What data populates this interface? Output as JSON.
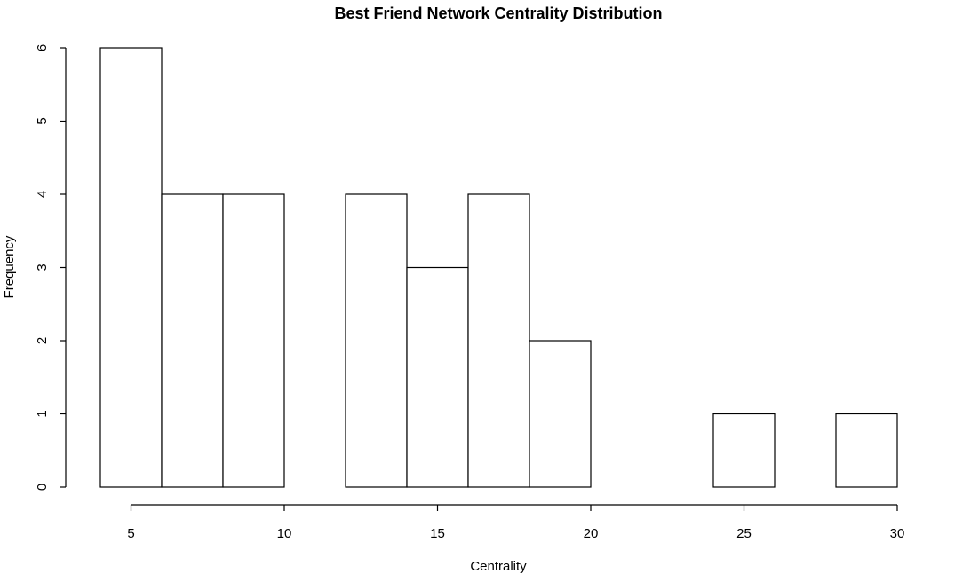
{
  "chart_data": {
    "type": "bar",
    "subtype": "histogram",
    "title": "Best Friend Network Centrality Distribution",
    "xlabel": "Centrality",
    "ylabel": "Frequency",
    "bins": [
      {
        "x0": 4,
        "x1": 6,
        "count": 6
      },
      {
        "x0": 6,
        "x1": 8,
        "count": 4
      },
      {
        "x0": 8,
        "x1": 10,
        "count": 4
      },
      {
        "x0": 10,
        "x1": 12,
        "count": 0
      },
      {
        "x0": 12,
        "x1": 14,
        "count": 4
      },
      {
        "x0": 14,
        "x1": 16,
        "count": 3
      },
      {
        "x0": 16,
        "x1": 18,
        "count": 4
      },
      {
        "x0": 18,
        "x1": 20,
        "count": 2
      },
      {
        "x0": 20,
        "x1": 22,
        "count": 0
      },
      {
        "x0": 22,
        "x1": 24,
        "count": 0
      },
      {
        "x0": 24,
        "x1": 26,
        "count": 1
      },
      {
        "x0": 26,
        "x1": 28,
        "count": 0
      },
      {
        "x0": 28,
        "x1": 30,
        "count": 1
      }
    ],
    "xlim": [
      4,
      30
    ],
    "ylim": [
      0,
      6
    ],
    "xticks": [
      5,
      10,
      15,
      20,
      25,
      30
    ],
    "yticks": [
      0,
      1,
      2,
      3,
      4,
      5,
      6
    ],
    "bar_fill": "#ffffff",
    "bar_stroke": "#000000",
    "grid": false
  }
}
